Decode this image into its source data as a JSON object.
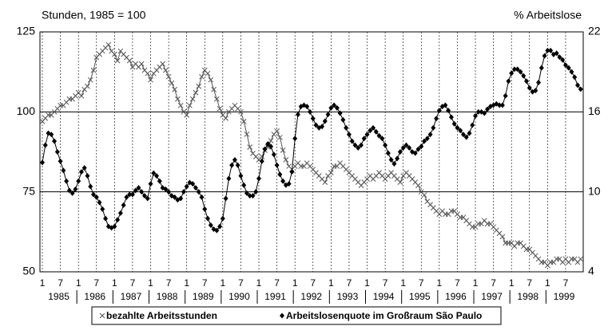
{
  "chart_data": {
    "type": "line",
    "left_axis_label": "Stunden, 1985 = 100",
    "right_axis_label": "% Arbeitslose",
    "x": [
      "1985-01",
      "1985-02",
      "1985-03",
      "1985-04",
      "1985-05",
      "1985-06",
      "1985-07",
      "1985-08",
      "1985-09",
      "1985-10",
      "1985-11",
      "1985-12",
      "1986-01",
      "1986-02",
      "1986-03",
      "1986-04",
      "1986-05",
      "1986-06",
      "1986-07",
      "1986-08",
      "1986-09",
      "1986-10",
      "1986-11",
      "1986-12",
      "1987-01",
      "1987-02",
      "1987-03",
      "1987-04",
      "1987-05",
      "1987-06",
      "1987-07",
      "1987-08",
      "1987-09",
      "1987-10",
      "1987-11",
      "1987-12",
      "1988-01",
      "1988-02",
      "1988-03",
      "1988-04",
      "1988-05",
      "1988-06",
      "1988-07",
      "1988-08",
      "1988-09",
      "1988-10",
      "1988-11",
      "1988-12",
      "1989-01",
      "1989-02",
      "1989-03",
      "1989-04",
      "1989-05",
      "1989-06",
      "1989-07",
      "1989-08",
      "1989-09",
      "1989-10",
      "1989-11",
      "1989-12",
      "1990-01",
      "1990-02",
      "1990-03",
      "1990-04",
      "1990-05",
      "1990-06",
      "1990-07",
      "1990-08",
      "1990-09",
      "1990-10",
      "1990-11",
      "1990-12",
      "1991-01",
      "1991-02",
      "1991-03",
      "1991-04",
      "1991-05",
      "1991-06",
      "1991-07",
      "1991-08",
      "1991-09",
      "1991-10",
      "1991-11",
      "1991-12",
      "1992-01",
      "1992-02",
      "1992-03",
      "1992-04",
      "1992-05",
      "1992-06",
      "1992-07",
      "1992-08",
      "1992-09",
      "1992-10",
      "1992-11",
      "1992-12",
      "1993-01",
      "1993-02",
      "1993-03",
      "1993-04",
      "1993-05",
      "1993-06",
      "1993-07",
      "1993-08",
      "1993-09",
      "1993-10",
      "1993-11",
      "1993-12",
      "1994-01",
      "1994-02",
      "1994-03",
      "1994-04",
      "1994-05",
      "1994-06",
      "1994-07",
      "1994-08",
      "1994-09",
      "1994-10",
      "1994-11",
      "1994-12",
      "1995-01",
      "1995-02",
      "1995-03",
      "1995-04",
      "1995-05",
      "1995-06",
      "1995-07",
      "1995-08",
      "1995-09",
      "1995-10",
      "1995-11",
      "1995-12",
      "1996-01",
      "1996-02",
      "1996-03",
      "1996-04",
      "1996-05",
      "1996-06",
      "1996-07",
      "1996-08",
      "1996-09",
      "1996-10",
      "1996-11",
      "1996-12",
      "1997-01",
      "1997-02",
      "1997-03",
      "1997-04",
      "1997-05",
      "1997-06",
      "1997-07",
      "1997-08",
      "1997-09",
      "1997-10",
      "1997-11",
      "1997-12",
      "1998-01",
      "1998-02",
      "1998-03",
      "1998-04",
      "1998-05",
      "1998-06",
      "1998-07",
      "1998-08",
      "1998-09",
      "1998-10",
      "1998-11",
      "1998-12",
      "1999-01",
      "1999-02",
      "1999-03",
      "1999-04",
      "1999-05",
      "1999-06",
      "1999-07",
      "1999-08",
      "1999-09",
      "1999-10",
      "1999-11",
      "1999-12"
    ],
    "xticks": [
      {
        "value": "1985-01",
        "label": "1"
      },
      {
        "value": "1985-07",
        "label": "7"
      },
      {
        "value": "1986-01",
        "label": "1"
      },
      {
        "value": "1986-07",
        "label": "7"
      },
      {
        "value": "1987-01",
        "label": "1"
      },
      {
        "value": "1987-07",
        "label": "7"
      },
      {
        "value": "1988-01",
        "label": "1"
      },
      {
        "value": "1988-07",
        "label": "7"
      },
      {
        "value": "1989-01",
        "label": "1"
      },
      {
        "value": "1989-07",
        "label": "7"
      },
      {
        "value": "1990-01",
        "label": "1"
      },
      {
        "value": "1990-07",
        "label": "7"
      },
      {
        "value": "1991-01",
        "label": "1"
      },
      {
        "value": "1991-07",
        "label": "7"
      },
      {
        "value": "1992-01",
        "label": "1"
      },
      {
        "value": "1992-07",
        "label": "7"
      },
      {
        "value": "1993-01",
        "label": "1"
      },
      {
        "value": "1993-07",
        "label": "7"
      },
      {
        "value": "1994-01",
        "label": "1"
      },
      {
        "value": "1994-07",
        "label": "7"
      },
      {
        "value": "1995-01",
        "label": "1"
      },
      {
        "value": "1995-07",
        "label": "7"
      },
      {
        "value": "1996-01",
        "label": "1"
      },
      {
        "value": "1996-07",
        "label": "7"
      },
      {
        "value": "1997-01",
        "label": "1"
      },
      {
        "value": "1997-07",
        "label": "7"
      },
      {
        "value": "1998-01",
        "label": "1"
      },
      {
        "value": "1998-07",
        "label": "7"
      },
      {
        "value": "1999-01",
        "label": "1"
      },
      {
        "value": "1999-07",
        "label": "7"
      }
    ],
    "year_labels": [
      "1985",
      "1986",
      "1987",
      "1988",
      "1989",
      "1990",
      "1991",
      "1992",
      "1993",
      "1994",
      "1995",
      "1996",
      "1997",
      "1998",
      "1999"
    ],
    "ylim": [
      50,
      125
    ],
    "yticks": [
      50,
      75,
      100,
      125
    ],
    "y2lim": [
      4,
      22
    ],
    "y2ticks": [
      4,
      10,
      16,
      22
    ],
    "grid": true,
    "series": [
      {
        "name": "bezahlte Arbeitsstunden",
        "color": "#555555",
        "marker": "x",
        "axis": "y",
        "values": [
          97,
          98,
          99,
          99,
          100,
          101,
          102,
          102,
          103,
          104,
          104,
          105,
          106,
          105,
          107,
          108,
          110,
          113,
          117,
          118,
          119,
          120,
          121,
          119,
          118,
          116,
          119,
          118,
          117,
          116,
          114,
          115,
          114,
          115,
          113,
          112,
          110,
          112,
          113,
          114,
          115,
          113,
          111,
          109,
          107,
          104,
          102,
          100,
          99,
          102,
          104,
          106,
          108,
          111,
          113,
          112,
          110,
          107,
          104,
          101,
          99,
          98,
          100,
          101,
          102,
          101,
          100,
          97,
          93,
          89,
          87,
          86,
          85,
          86,
          88,
          89,
          91,
          93,
          94,
          92,
          88,
          85,
          83,
          82,
          83,
          84,
          83,
          83,
          84,
          83,
          82,
          81,
          80,
          79,
          78,
          80,
          81,
          83,
          83,
          84,
          83,
          82,
          81,
          80,
          79,
          78,
          77,
          78,
          79,
          80,
          79,
          80,
          81,
          80,
          79,
          80,
          81,
          80,
          79,
          78,
          80,
          81,
          80,
          79,
          78,
          77,
          75,
          74,
          72,
          71,
          70,
          69,
          68,
          69,
          68,
          68,
          69,
          69,
          68,
          67,
          67,
          66,
          65,
          64,
          64,
          65,
          65,
          66,
          65,
          65,
          64,
          63,
          62,
          61,
          59,
          59,
          59,
          58,
          59,
          59,
          58,
          57,
          57,
          56,
          55,
          54,
          53,
          53,
          52,
          53,
          53,
          54,
          54,
          53,
          54,
          53,
          54,
          54,
          53,
          54
        ]
      },
      {
        "name": "Arbeitslosenquote im Großraum São Paulo",
        "color": "#000000",
        "marker": "diamond",
        "axis": "y2",
        "values": [
          12.2,
          13.5,
          14.4,
          14.3,
          13.8,
          13.0,
          12.3,
          11.6,
          10.8,
          10.1,
          9.9,
          10.2,
          10.8,
          11.5,
          11.8,
          11.2,
          10.4,
          9.8,
          9.6,
          9.2,
          8.7,
          8.0,
          7.4,
          7.3,
          7.4,
          7.9,
          8.4,
          9.0,
          9.6,
          9.8,
          9.8,
          10.1,
          10.3,
          10.0,
          9.7,
          9.5,
          10.6,
          11.4,
          11.2,
          10.8,
          10.3,
          10.2,
          10.0,
          9.7,
          9.6,
          9.4,
          9.5,
          10.0,
          10.4,
          10.7,
          10.6,
          10.3,
          10.0,
          9.6,
          8.7,
          8.0,
          7.5,
          7.2,
          7.1,
          7.4,
          8.0,
          9.5,
          11.0,
          12.0,
          12.4,
          12.0,
          11.2,
          10.5,
          9.9,
          9.7,
          9.7,
          10.0,
          11.0,
          12.3,
          13.2,
          13.6,
          13.4,
          12.8,
          12.0,
          11.3,
          10.8,
          10.5,
          10.6,
          11.5,
          14.0,
          15.8,
          16.4,
          16.5,
          16.4,
          16.0,
          15.5,
          15.0,
          14.8,
          14.9,
          15.3,
          15.8,
          16.3,
          16.5,
          16.3,
          15.9,
          15.4,
          14.8,
          14.3,
          13.8,
          13.5,
          13.3,
          13.5,
          14.0,
          14.3,
          14.6,
          14.8,
          14.5,
          14.2,
          14.0,
          13.5,
          12.9,
          12.4,
          12.1,
          12.5,
          13.0,
          13.3,
          13.5,
          13.3,
          13.0,
          12.9,
          13.2,
          13.4,
          13.8,
          14.0,
          14.3,
          14.8,
          15.5,
          16.1,
          16.4,
          16.5,
          16.1,
          15.6,
          15.1,
          14.8,
          14.6,
          14.3,
          14.1,
          14.4,
          15.0,
          15.7,
          16.0,
          16.0,
          15.9,
          16.2,
          16.4,
          16.5,
          16.6,
          16.5,
          16.5,
          17.2,
          18.3,
          18.9,
          19.2,
          19.2,
          19.0,
          18.7,
          18.3,
          17.8,
          17.5,
          17.6,
          18.2,
          19.3,
          20.2,
          20.6,
          20.6,
          20.3,
          20.4,
          20.1,
          19.9,
          19.5,
          19.3,
          19.0,
          18.6,
          18.0,
          17.7
        ]
      }
    ]
  }
}
